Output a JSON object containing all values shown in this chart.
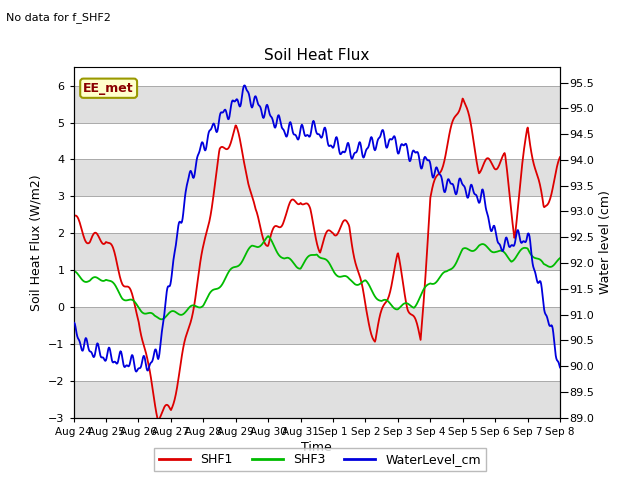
{
  "title": "Soil Heat Flux",
  "top_left_note": "No data for f_SHF2",
  "annotation_text": "EE_met",
  "ylabel_left": "Soil Heat Flux (W/m2)",
  "ylabel_right": "Water level (cm)",
  "xlabel": "Time",
  "ylim_left": [
    -3.0,
    6.5
  ],
  "ylim_right": [
    89.0,
    95.8
  ],
  "yticks_left": [
    -3.0,
    -2.0,
    -1.0,
    0.0,
    1.0,
    2.0,
    3.0,
    4.0,
    5.0,
    6.0
  ],
  "yticks_right": [
    89.0,
    89.5,
    90.0,
    90.5,
    91.0,
    91.5,
    92.0,
    92.5,
    93.0,
    93.5,
    94.0,
    94.5,
    95.0,
    95.5
  ],
  "xtick_labels": [
    "Aug 24",
    "Aug 25",
    "Aug 26",
    "Aug 27",
    "Aug 28",
    "Aug 29",
    "Aug 30",
    "Aug 31",
    "Sep 1",
    "Sep 2",
    "Sep 3",
    "Sep 4",
    "Sep 5",
    "Sep 6",
    "Sep 7",
    "Sep 8"
  ],
  "color_shf1": "#dd0000",
  "color_shf3": "#00bb00",
  "color_water": "#0000dd",
  "legend_items": [
    "SHF1",
    "SHF3",
    "WaterLevel_cm"
  ],
  "bg_color": "#ffffff",
  "grid_color": "#aaaaaa",
  "band_color": "#e0e0e0",
  "shf1_key_x": [
    0,
    0.5,
    1.0,
    1.5,
    2.0,
    2.3,
    2.6,
    3.0,
    3.5,
    4.0,
    4.5,
    5.0,
    5.3,
    5.6,
    6.0,
    6.5,
    7.0,
    7.3,
    7.6,
    8.0,
    8.5,
    9.0,
    9.3,
    9.6,
    10.0,
    10.3,
    10.7,
    11.0,
    11.5,
    12.0,
    12.5,
    13.0,
    13.3,
    13.6,
    14.0,
    14.5,
    15.0
  ],
  "shf1_key_y": [
    2.4,
    1.8,
    1.9,
    0.8,
    -0.2,
    -1.7,
    -2.9,
    -2.8,
    -0.8,
    1.5,
    4.1,
    4.8,
    3.9,
    2.5,
    1.7,
    2.5,
    3.0,
    2.5,
    1.6,
    2.1,
    2.2,
    -0.05,
    -0.9,
    0.1,
    1.3,
    0.1,
    -0.9,
    2.9,
    4.3,
    5.8,
    3.8,
    3.9,
    4.0,
    2.0,
    4.9,
    2.6,
    3.9
  ],
  "shf3_key_x": [
    0,
    0.5,
    1.0,
    1.5,
    2.0,
    2.5,
    3.0,
    3.5,
    4.0,
    4.5,
    5.0,
    5.5,
    6.0,
    6.5,
    7.0,
    7.5,
    8.0,
    8.5,
    9.0,
    9.5,
    10.0,
    10.5,
    11.0,
    11.5,
    12.0,
    12.5,
    13.0,
    13.5,
    14.0,
    14.5,
    15.0
  ],
  "shf3_key_y": [
    0.9,
    0.7,
    0.8,
    0.3,
    0.0,
    -0.3,
    -0.2,
    -0.1,
    0.1,
    0.6,
    1.1,
    1.6,
    1.85,
    1.3,
    1.1,
    1.5,
    1.0,
    0.7,
    0.65,
    0.15,
    0.0,
    0.05,
    0.65,
    0.9,
    1.5,
    1.65,
    1.55,
    1.3,
    1.6,
    1.1,
    1.25
  ],
  "wl_key_x": [
    0,
    0.3,
    0.6,
    1.0,
    1.5,
    2.0,
    2.3,
    2.6,
    3.0,
    3.5,
    4.0,
    4.5,
    5.0,
    5.3,
    5.6,
    6.0,
    6.5,
    7.0,
    7.5,
    8.0,
    8.5,
    9.0,
    9.5,
    10.0,
    10.5,
    11.0,
    11.5,
    12.0,
    12.3,
    12.6,
    13.0,
    13.3,
    13.6,
    14.0,
    14.3,
    14.6,
    15.0
  ],
  "wl_key_y": [
    90.7,
    90.4,
    90.3,
    90.2,
    90.1,
    90.0,
    90.05,
    90.2,
    91.8,
    93.5,
    94.3,
    94.8,
    95.1,
    95.35,
    95.1,
    94.9,
    94.6,
    94.5,
    94.6,
    94.3,
    94.15,
    94.2,
    94.45,
    94.3,
    94.1,
    93.9,
    93.5,
    93.5,
    93.35,
    93.3,
    92.5,
    92.3,
    92.45,
    92.5,
    91.7,
    91.0,
    90.0
  ]
}
